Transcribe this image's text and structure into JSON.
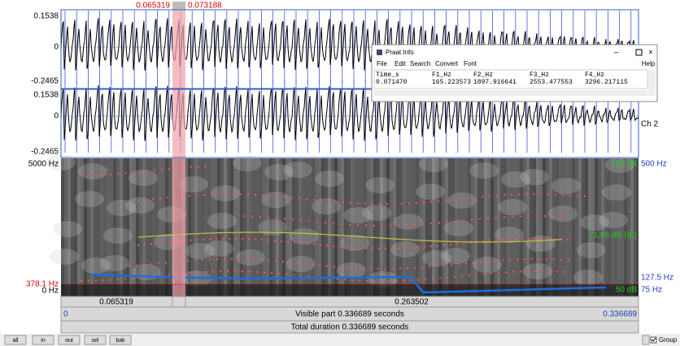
{
  "selection": {
    "start": "0.065319",
    "end": "0.073188"
  },
  "channel1": {
    "max": "0.1538",
    "zero": "0",
    "min": "-0.2465"
  },
  "channel2": {
    "max": "0.1538",
    "zero": "0",
    "min": "-0.2465",
    "label": "Ch 2"
  },
  "spectrogram": {
    "top": "5000 Hz",
    "bottom": "0 Hz",
    "cursor": "378.1 Hz",
    "pitch_top": "500 Hz",
    "pitch_mid": "127.5 Hz",
    "pitch_bottom": "75 Hz",
    "intensity_top": "100 dB",
    "intensity_cursor": "71.96 dB (IE)",
    "intensity_bottom": "50 dB"
  },
  "time_bar": {
    "cursor": "0.065319",
    "window_mid": "0.263502",
    "start": "0",
    "visible": "Visible part 0.336689 seconds",
    "end": "0.336689",
    "total": "Total duration 0.336689 seconds"
  },
  "buttons": [
    "all",
    "in",
    "out",
    "sel",
    "bak"
  ],
  "group": "Group",
  "info_window": {
    "title": "Praat Info",
    "menu": [
      "File",
      "Edit",
      "Search",
      "Convert",
      "Font"
    ],
    "help": "Help",
    "columns": [
      "Time_s",
      "F1_Hz",
      "F2_Hz",
      "F3_Hz",
      "F4_Hz"
    ],
    "values": [
      "0.071470",
      "165.223573",
      "1897.916641",
      "2553.477553",
      "3296.217115"
    ]
  }
}
